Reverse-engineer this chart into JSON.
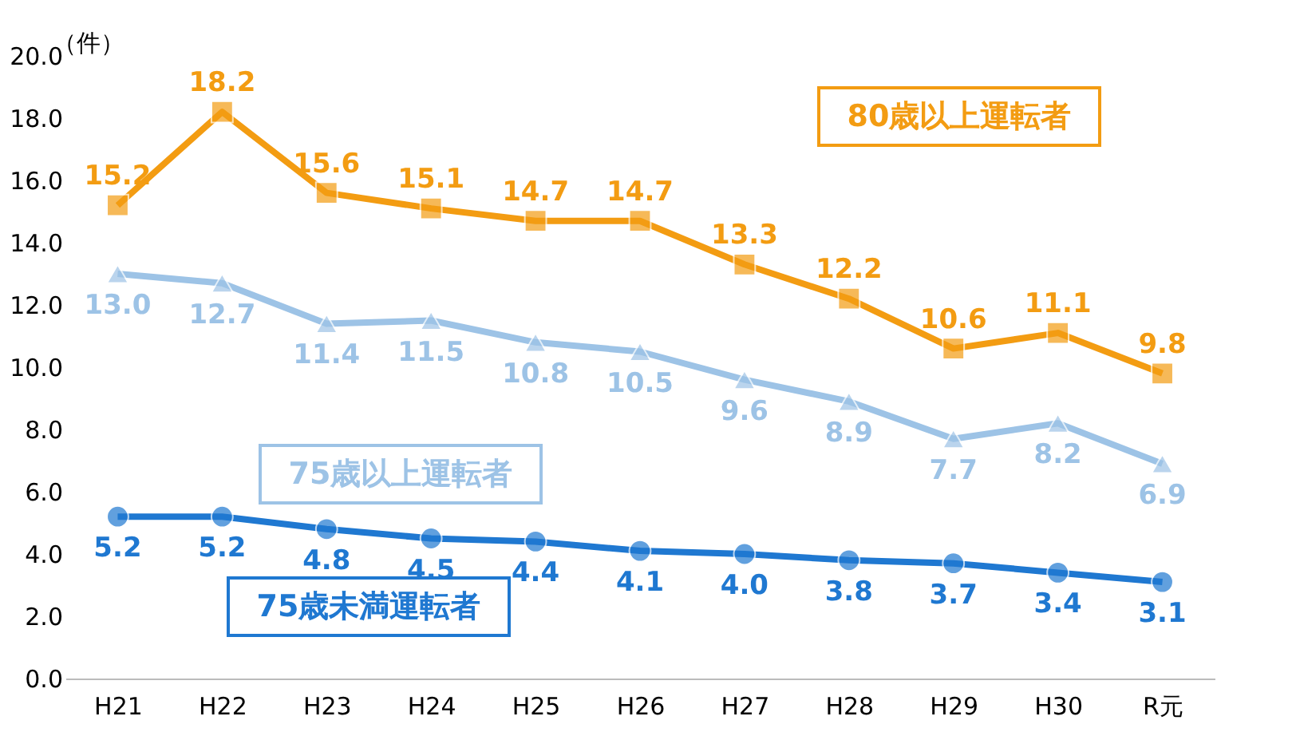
{
  "chart_data": {
    "type": "line",
    "ylabel": "（件）",
    "categories": [
      "H21",
      "H22",
      "H23",
      "H24",
      "H25",
      "H26",
      "H27",
      "H28",
      "H29",
      "H30",
      "R元"
    ],
    "ylim": [
      0,
      20
    ],
    "yticks": [
      {
        "value": 0,
        "label": "0.0"
      },
      {
        "value": 2,
        "label": "2.0"
      },
      {
        "value": 4,
        "label": "4.0"
      },
      {
        "value": 6,
        "label": "6.0"
      },
      {
        "value": 8,
        "label": "8.0"
      },
      {
        "value": 10,
        "label": "10.0"
      },
      {
        "value": 12,
        "label": "12.0"
      },
      {
        "value": 14,
        "label": "14.0"
      },
      {
        "value": 16,
        "label": "16.0"
      },
      {
        "value": 18,
        "label": "18.0"
      },
      {
        "value": 20,
        "label": "20.0"
      }
    ],
    "grid": false,
    "legend": false,
    "series": [
      {
        "name": "80歳以上運転者",
        "color": "#f39c12",
        "marker": "square",
        "values": [
          15.2,
          18.2,
          15.6,
          15.1,
          14.7,
          14.7,
          13.3,
          12.2,
          10.6,
          11.1,
          9.8
        ],
        "value_labels": [
          "15.2",
          "18.2",
          "15.6",
          "15.1",
          "14.7",
          "14.7",
          "13.3",
          "12.2",
          "10.6",
          "11.1",
          "9.8"
        ]
      },
      {
        "name": "75歳以上運転者",
        "color": "#9dc3e6",
        "marker": "triangle",
        "values": [
          13.0,
          12.7,
          11.4,
          11.5,
          10.8,
          10.5,
          9.6,
          8.9,
          7.7,
          8.2,
          6.9
        ],
        "value_labels": [
          "13.0",
          "12.7",
          "11.4",
          "11.5",
          "10.8",
          "10.5",
          "9.6",
          "8.9",
          "7.7",
          "8.2",
          "6.9"
        ]
      },
      {
        "name": "75歳未満運転者",
        "color": "#1f78d1",
        "marker": "circle",
        "values": [
          5.2,
          5.2,
          4.8,
          4.5,
          4.4,
          4.1,
          4.0,
          3.8,
          3.7,
          3.4,
          3.1
        ],
        "value_labels": [
          "5.2",
          "5.2",
          "4.8",
          "4.5",
          "4.4",
          "4.1",
          "4.0",
          "3.8",
          "3.7",
          "3.4",
          "3.1"
        ]
      }
    ]
  }
}
